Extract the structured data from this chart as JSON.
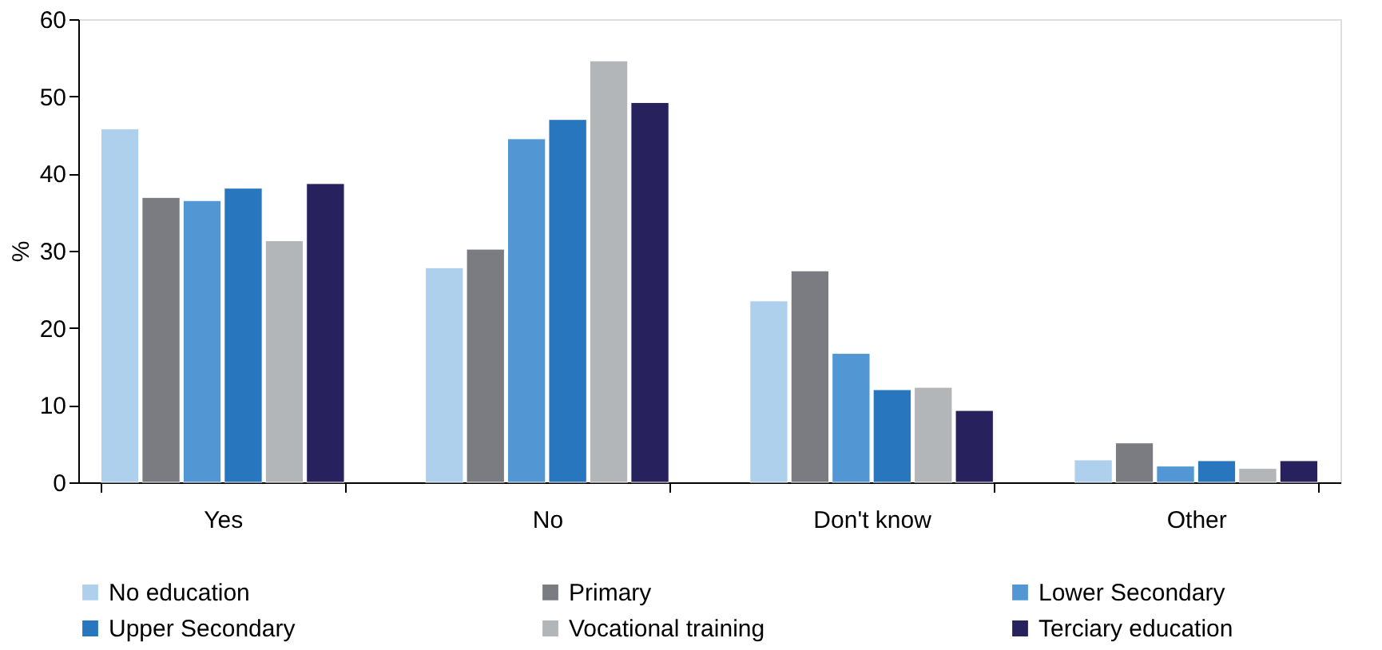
{
  "chart_data": {
    "type": "bar",
    "ylabel": "%",
    "categories": [
      "Yes",
      "No",
      "Don't know",
      "Other"
    ],
    "series": [
      {
        "name": "No education",
        "color": "#afd0ed",
        "values": [
          45.8,
          27.8,
          23.5,
          2.9
        ]
      },
      {
        "name": "Primary",
        "color": "#7b7c81",
        "values": [
          36.9,
          30.2,
          27.4,
          5.1
        ]
      },
      {
        "name": "Lower Secondary",
        "color": "#5297d3",
        "values": [
          36.5,
          44.5,
          16.7,
          2.1
        ]
      },
      {
        "name": "Upper Secondary",
        "color": "#2776be",
        "values": [
          38.1,
          47.0,
          12.0,
          2.8
        ]
      },
      {
        "name": "Vocational training",
        "color": "#b3b6b9",
        "values": [
          31.3,
          54.6,
          12.3,
          1.8
        ]
      },
      {
        "name": "Terciary education",
        "color": "#27225e",
        "values": [
          38.7,
          49.2,
          9.3,
          2.8
        ]
      }
    ],
    "ylim": [
      0,
      60
    ],
    "yticks": [
      0,
      10,
      20,
      30,
      40,
      50,
      60
    ],
    "grid": false,
    "legend": "bottom"
  }
}
